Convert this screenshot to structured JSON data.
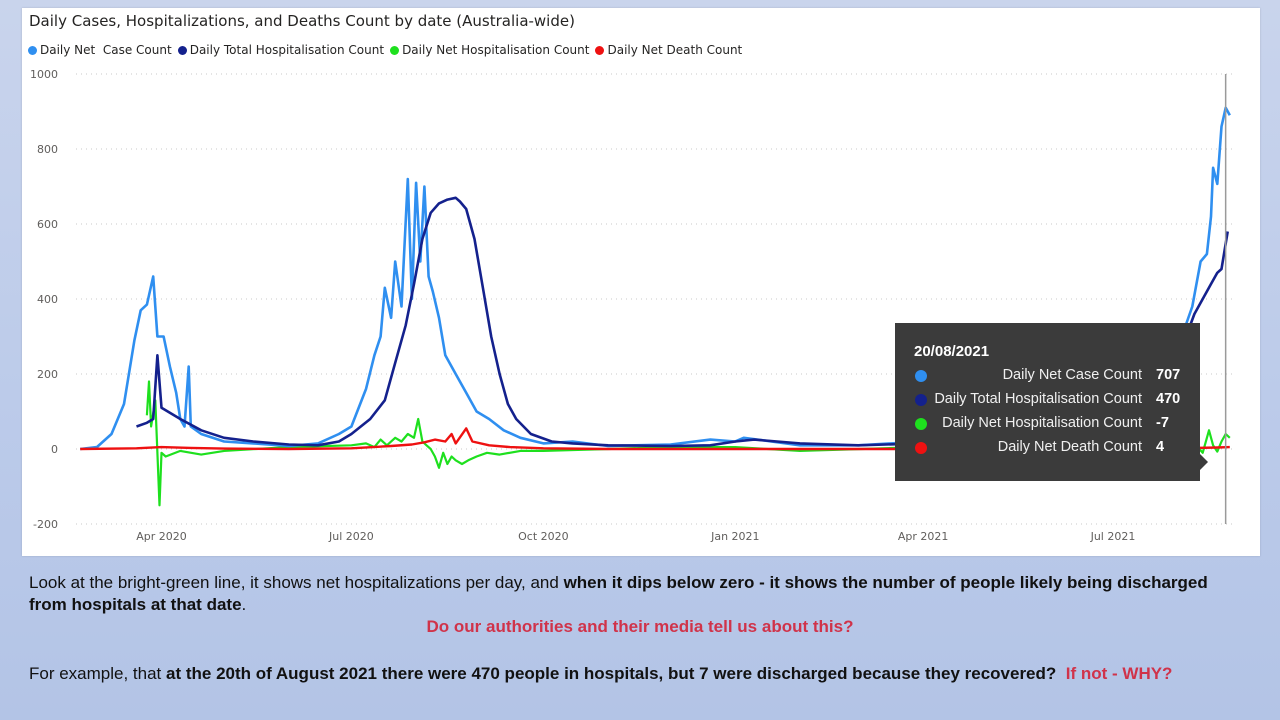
{
  "colors": {
    "case": "#2f8ff0",
    "total_hosp": "#14218d",
    "net_hosp": "#1ee01e",
    "death": "#ee1111",
    "tooltip_bg": "#3b3b3b",
    "emphasis": "#d0334a"
  },
  "chart_data": {
    "type": "line",
    "title": "Daily Cases, Hospitalizations, and Deaths Count by date (Australia-wide)",
    "legend_position": "top-left",
    "ylim": [
      -200,
      1000
    ],
    "y_ticks": [
      "1000",
      "800",
      "600",
      "400",
      "200",
      "0",
      "-200"
    ],
    "x_range": [
      "2020-02-20",
      "2021-08-28"
    ],
    "x_ticks": [
      {
        "date": "2020-04-01",
        "label": "Apr 2020"
      },
      {
        "date": "2020-07-01",
        "label": "Jul 2020"
      },
      {
        "date": "2020-10-01",
        "label": "Oct 2020"
      },
      {
        "date": "2021-01-01",
        "label": "Jan 2021"
      },
      {
        "date": "2021-04-01",
        "label": "Apr 2021"
      },
      {
        "date": "2021-07-01",
        "label": "Jul 2021"
      }
    ],
    "highlight_date": "2021-08-20",
    "series": [
      {
        "name": "Daily Net  Case Count",
        "key": "case",
        "points": [
          [
            "2020-02-22",
            0
          ],
          [
            "2020-03-01",
            5
          ],
          [
            "2020-03-08",
            40
          ],
          [
            "2020-03-14",
            120
          ],
          [
            "2020-03-19",
            290
          ],
          [
            "2020-03-22",
            370
          ],
          [
            "2020-03-25",
            385
          ],
          [
            "2020-03-28",
            460
          ],
          [
            "2020-03-30",
            300
          ],
          [
            "2020-04-02",
            300
          ],
          [
            "2020-04-05",
            220
          ],
          [
            "2020-04-08",
            150
          ],
          [
            "2020-04-10",
            80
          ],
          [
            "2020-04-12",
            60
          ],
          [
            "2020-04-14",
            220
          ],
          [
            "2020-04-15",
            60
          ],
          [
            "2020-04-20",
            40
          ],
          [
            "2020-05-01",
            20
          ],
          [
            "2020-05-15",
            15
          ],
          [
            "2020-06-01",
            8
          ],
          [
            "2020-06-15",
            15
          ],
          [
            "2020-06-25",
            40
          ],
          [
            "2020-07-01",
            60
          ],
          [
            "2020-07-08",
            160
          ],
          [
            "2020-07-12",
            250
          ],
          [
            "2020-07-15",
            300
          ],
          [
            "2020-07-17",
            430
          ],
          [
            "2020-07-20",
            350
          ],
          [
            "2020-07-22",
            500
          ],
          [
            "2020-07-25",
            380
          ],
          [
            "2020-07-28",
            720
          ],
          [
            "2020-07-30",
            400
          ],
          [
            "2020-08-01",
            710
          ],
          [
            "2020-08-03",
            500
          ],
          [
            "2020-08-05",
            700
          ],
          [
            "2020-08-07",
            460
          ],
          [
            "2020-08-09",
            420
          ],
          [
            "2020-08-12",
            350
          ],
          [
            "2020-08-15",
            250
          ],
          [
            "2020-08-20",
            200
          ],
          [
            "2020-08-25",
            150
          ],
          [
            "2020-08-30",
            100
          ],
          [
            "2020-09-05",
            80
          ],
          [
            "2020-09-12",
            50
          ],
          [
            "2020-09-20",
            30
          ],
          [
            "2020-10-01",
            15
          ],
          [
            "2020-10-15",
            20
          ],
          [
            "2020-11-01",
            8
          ],
          [
            "2020-12-01",
            12
          ],
          [
            "2020-12-20",
            25
          ],
          [
            "2021-01-01",
            20
          ],
          [
            "2021-01-05",
            30
          ],
          [
            "2021-02-01",
            10
          ],
          [
            "2021-03-01",
            10
          ],
          [
            "2021-04-01",
            20
          ],
          [
            "2021-05-01",
            12
          ],
          [
            "2021-06-01",
            15
          ],
          [
            "2021-06-25",
            30
          ],
          [
            "2021-07-01",
            50
          ],
          [
            "2021-07-10",
            100
          ],
          [
            "2021-07-20",
            150
          ],
          [
            "2021-07-28",
            250
          ],
          [
            "2021-08-03",
            300
          ],
          [
            "2021-08-08",
            380
          ],
          [
            "2021-08-12",
            500
          ],
          [
            "2021-08-15",
            520
          ],
          [
            "2021-08-17",
            620
          ],
          [
            "2021-08-18",
            750
          ],
          [
            "2021-08-20",
            707
          ],
          [
            "2021-08-22",
            860
          ],
          [
            "2021-08-24",
            910
          ],
          [
            "2021-08-26",
            890
          ]
        ]
      },
      {
        "name": "Daily Total Hospitalisation Count",
        "key": "total_hosp",
        "points": [
          [
            "2020-03-20",
            60
          ],
          [
            "2020-03-25",
            70
          ],
          [
            "2020-03-28",
            80
          ],
          [
            "2020-03-30",
            250
          ],
          [
            "2020-04-01",
            110
          ],
          [
            "2020-04-10",
            80
          ],
          [
            "2020-04-20",
            50
          ],
          [
            "2020-05-01",
            30
          ],
          [
            "2020-05-15",
            20
          ],
          [
            "2020-06-01",
            12
          ],
          [
            "2020-06-15",
            10
          ],
          [
            "2020-06-25",
            20
          ],
          [
            "2020-07-01",
            40
          ],
          [
            "2020-07-10",
            80
          ],
          [
            "2020-07-17",
            130
          ],
          [
            "2020-07-22",
            230
          ],
          [
            "2020-07-27",
            330
          ],
          [
            "2020-07-31",
            440
          ],
          [
            "2020-08-04",
            560
          ],
          [
            "2020-08-08",
            630
          ],
          [
            "2020-08-12",
            655
          ],
          [
            "2020-08-16",
            665
          ],
          [
            "2020-08-20",
            670
          ],
          [
            "2020-08-22",
            660
          ],
          [
            "2020-08-25",
            640
          ],
          [
            "2020-08-29",
            560
          ],
          [
            "2020-09-02",
            430
          ],
          [
            "2020-09-06",
            300
          ],
          [
            "2020-09-10",
            200
          ],
          [
            "2020-09-14",
            120
          ],
          [
            "2020-09-18",
            80
          ],
          [
            "2020-09-25",
            40
          ],
          [
            "2020-10-05",
            20
          ],
          [
            "2020-10-15",
            15
          ],
          [
            "2020-11-01",
            10
          ],
          [
            "2020-12-01",
            8
          ],
          [
            "2020-12-20",
            10
          ],
          [
            "2021-01-01",
            20
          ],
          [
            "2021-01-10",
            25
          ],
          [
            "2021-02-01",
            15
          ],
          [
            "2021-03-01",
            10
          ],
          [
            "2021-04-01",
            15
          ],
          [
            "2021-05-01",
            12
          ],
          [
            "2021-06-01",
            10
          ],
          [
            "2021-06-20",
            30
          ],
          [
            "2021-07-01",
            60
          ],
          [
            "2021-07-15",
            110
          ],
          [
            "2021-07-25",
            170
          ],
          [
            "2021-08-01",
            230
          ],
          [
            "2021-08-05",
            300
          ],
          [
            "2021-08-09",
            360
          ],
          [
            "2021-08-13",
            400
          ],
          [
            "2021-08-17",
            440
          ],
          [
            "2021-08-20",
            470
          ],
          [
            "2021-08-22",
            480
          ],
          [
            "2021-08-25",
            580
          ]
        ]
      },
      {
        "name": "Daily Net Hospitalisation Count",
        "key": "net_hosp",
        "points": [
          [
            "2020-03-25",
            90
          ],
          [
            "2020-03-26",
            180
          ],
          [
            "2020-03-27",
            60
          ],
          [
            "2020-03-29",
            130
          ],
          [
            "2020-03-31",
            -150
          ],
          [
            "2020-04-01",
            -10
          ],
          [
            "2020-04-03",
            -20
          ],
          [
            "2020-04-10",
            -5
          ],
          [
            "2020-04-20",
            -15
          ],
          [
            "2020-05-01",
            -5
          ],
          [
            "2020-06-01",
            5
          ],
          [
            "2020-07-01",
            10
          ],
          [
            "2020-07-08",
            15
          ],
          [
            "2020-07-12",
            5
          ],
          [
            "2020-07-15",
            25
          ],
          [
            "2020-07-18",
            10
          ],
          [
            "2020-07-22",
            30
          ],
          [
            "2020-07-25",
            20
          ],
          [
            "2020-07-28",
            40
          ],
          [
            "2020-07-31",
            30
          ],
          [
            "2020-08-02",
            80
          ],
          [
            "2020-08-04",
            20
          ],
          [
            "2020-08-06",
            10
          ],
          [
            "2020-08-08",
            0
          ],
          [
            "2020-08-10",
            -20
          ],
          [
            "2020-08-12",
            -50
          ],
          [
            "2020-08-14",
            -10
          ],
          [
            "2020-08-16",
            -40
          ],
          [
            "2020-08-18",
            -20
          ],
          [
            "2020-08-20",
            -30
          ],
          [
            "2020-08-23",
            -40
          ],
          [
            "2020-08-26",
            -30
          ],
          [
            "2020-08-30",
            -20
          ],
          [
            "2020-09-04",
            -10
          ],
          [
            "2020-09-10",
            -15
          ],
          [
            "2020-09-20",
            -5
          ],
          [
            "2020-10-01",
            -5
          ],
          [
            "2020-11-01",
            0
          ],
          [
            "2020-12-01",
            5
          ],
          [
            "2021-01-01",
            5
          ],
          [
            "2021-02-01",
            -5
          ],
          [
            "2021-04-01",
            5
          ],
          [
            "2021-06-01",
            0
          ],
          [
            "2021-07-01",
            5
          ],
          [
            "2021-07-20",
            10
          ],
          [
            "2021-08-01",
            -10
          ],
          [
            "2021-08-08",
            20
          ],
          [
            "2021-08-13",
            -10
          ],
          [
            "2021-08-16",
            50
          ],
          [
            "2021-08-18",
            10
          ],
          [
            "2021-08-20",
            -7
          ],
          [
            "2021-08-22",
            20
          ],
          [
            "2021-08-24",
            40
          ],
          [
            "2021-08-26",
            30
          ]
        ]
      },
      {
        "name": "Daily Net Death Count",
        "key": "death",
        "points": [
          [
            "2020-02-22",
            0
          ],
          [
            "2020-03-20",
            2
          ],
          [
            "2020-04-01",
            5
          ],
          [
            "2020-04-15",
            3
          ],
          [
            "2020-05-01",
            1
          ],
          [
            "2020-06-01",
            0
          ],
          [
            "2020-07-01",
            2
          ],
          [
            "2020-07-20",
            8
          ],
          [
            "2020-07-30",
            12
          ],
          [
            "2020-08-05",
            18
          ],
          [
            "2020-08-10",
            25
          ],
          [
            "2020-08-15",
            20
          ],
          [
            "2020-08-18",
            40
          ],
          [
            "2020-08-20",
            15
          ],
          [
            "2020-08-25",
            55
          ],
          [
            "2020-08-28",
            20
          ],
          [
            "2020-09-05",
            10
          ],
          [
            "2020-09-15",
            5
          ],
          [
            "2020-10-01",
            2
          ],
          [
            "2020-11-01",
            0
          ],
          [
            "2021-01-01",
            0
          ],
          [
            "2021-06-01",
            0
          ],
          [
            "2021-08-01",
            2
          ],
          [
            "2021-08-20",
            4
          ],
          [
            "2021-08-26",
            5
          ]
        ]
      }
    ]
  },
  "tooltip": {
    "date": "20/08/2021",
    "rows": [
      {
        "label": "Daily Net Case Count",
        "value": "707"
      },
      {
        "label": "Daily Total Hospitalisation Count",
        "value": "470"
      },
      {
        "label": "Daily Net Hospitalisation Count",
        "value": "-7"
      },
      {
        "label": "Daily Net Death Count",
        "value": "4"
      }
    ]
  },
  "caption": {
    "p1_a": "Look at the bright-green line, it shows net hospitalizations per day, and ",
    "p1_b": "when it dips below zero - it shows the number of people likely being discharged from hospitals at that date",
    "p1_c": ".",
    "question": "Do our authorities and their media tell us about this?",
    "p2_a": "For example, that ",
    "p2_b": "at the 20th of August 2021 there were 470 people in hospitals, but 7 were discharged because they recovered?",
    "p2_c": "If not - WHY?"
  }
}
